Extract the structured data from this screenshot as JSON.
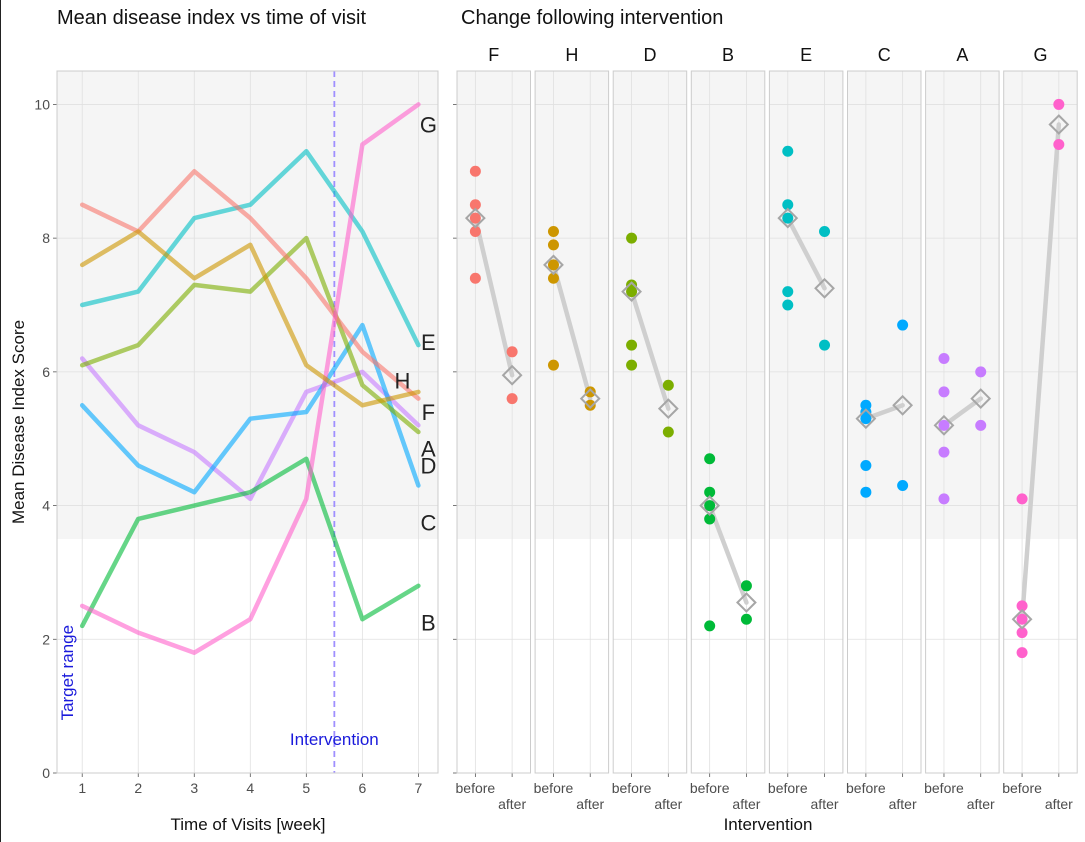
{
  "chart_data": [
    {
      "type": "line",
      "title": "Mean disease index vs time of visit",
      "xlabel": "Time of Visits [week]",
      "ylabel": "Mean Disease Index Score",
      "xlim": [
        0.55,
        7.35
      ],
      "ylim": [
        0,
        10.5
      ],
      "x_ticks": [
        1,
        2,
        3,
        4,
        5,
        6,
        7
      ],
      "y_ticks": [
        0,
        2,
        4,
        6,
        8,
        10
      ],
      "grid": true,
      "target_range": [
        3.5,
        10.5
      ],
      "target_range_label": "Target range",
      "intervention_x": 5.5,
      "intervention_label": "Intervention",
      "x": [
        1,
        2,
        3,
        4,
        5,
        6,
        7
      ],
      "series": [
        {
          "name": "A",
          "color": "#C77CFF",
          "values": [
            6.2,
            5.2,
            4.8,
            4.1,
            5.7,
            6.0,
            5.2
          ]
        },
        {
          "name": "B",
          "color": "#00BA38",
          "values": [
            2.2,
            3.8,
            4.0,
            4.2,
            4.7,
            2.3,
            2.8
          ]
        },
        {
          "name": "C",
          "color": "#00A9FF",
          "values": [
            5.5,
            4.6,
            4.2,
            5.3,
            5.4,
            6.7,
            4.3
          ]
        },
        {
          "name": "D",
          "color": "#7CAE00",
          "values": [
            6.1,
            6.4,
            7.3,
            7.2,
            8.0,
            5.8,
            5.1
          ]
        },
        {
          "name": "E",
          "color": "#00BFC4",
          "values": [
            7.0,
            7.2,
            8.3,
            8.5,
            9.3,
            8.1,
            6.4
          ]
        },
        {
          "name": "F",
          "color": "#F8766D",
          "values": [
            8.5,
            8.1,
            9.0,
            8.3,
            7.4,
            6.3,
            5.6
          ]
        },
        {
          "name": "G",
          "color": "#FF61CC",
          "values": [
            2.5,
            2.1,
            1.8,
            2.3,
            4.1,
            9.4,
            10.0
          ]
        },
        {
          "name": "H",
          "color": "#CD9600",
          "values": [
            7.6,
            8.1,
            7.4,
            7.9,
            6.1,
            5.5,
            5.7
          ]
        }
      ]
    },
    {
      "type": "scatter",
      "title": "Change following intervention",
      "xlabel": "Intervention",
      "ylim": [
        0,
        10.5
      ],
      "categories": [
        "before",
        "after"
      ],
      "facets": [
        {
          "name": "F",
          "color": "#F8766D",
          "before": [
            8.5,
            8.1,
            9.0,
            8.3,
            7.4
          ],
          "after": [
            6.3,
            5.6
          ],
          "mean_before": 8.3,
          "mean_after": 5.95
        },
        {
          "name": "H",
          "color": "#CD9600",
          "before": [
            7.6,
            8.1,
            7.4,
            7.9,
            6.1
          ],
          "after": [
            5.5,
            5.7
          ],
          "mean_before": 7.6,
          "mean_after": 5.6
        },
        {
          "name": "D",
          "color": "#7CAE00",
          "before": [
            6.1,
            6.4,
            7.3,
            7.2,
            8.0
          ],
          "after": [
            5.8,
            5.1
          ],
          "mean_before": 7.2,
          "mean_after": 5.45
        },
        {
          "name": "B",
          "color": "#00BA38",
          "before": [
            2.2,
            3.8,
            4.0,
            4.2,
            4.7
          ],
          "after": [
            2.3,
            2.8
          ],
          "mean_before": 4.0,
          "mean_after": 2.55
        },
        {
          "name": "E",
          "color": "#00BFC4",
          "before": [
            7.0,
            7.2,
            8.3,
            8.5,
            9.3
          ],
          "after": [
            8.1,
            6.4
          ],
          "mean_before": 8.3,
          "mean_after": 7.25
        },
        {
          "name": "C",
          "color": "#00A9FF",
          "before": [
            5.5,
            4.6,
            4.2,
            5.3,
            5.4
          ],
          "after": [
            6.7,
            4.3
          ],
          "mean_before": 5.3,
          "mean_after": 5.5
        },
        {
          "name": "A",
          "color": "#C77CFF",
          "before": [
            6.2,
            5.2,
            4.8,
            4.1,
            5.7
          ],
          "after": [
            6.0,
            5.2
          ],
          "mean_before": 5.2,
          "mean_after": 5.6
        },
        {
          "name": "G",
          "color": "#FF61CC",
          "before": [
            2.5,
            2.1,
            1.8,
            2.3,
            4.1
          ],
          "after": [
            9.4,
            10.0
          ],
          "mean_before": 2.3,
          "mean_after": 9.7
        }
      ]
    }
  ]
}
